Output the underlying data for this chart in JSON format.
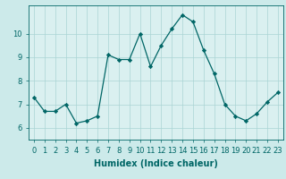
{
  "x": [
    0,
    1,
    2,
    3,
    4,
    5,
    6,
    7,
    8,
    9,
    10,
    11,
    12,
    13,
    14,
    15,
    16,
    17,
    18,
    19,
    20,
    21,
    22,
    23
  ],
  "y": [
    7.3,
    6.7,
    6.7,
    7.0,
    6.2,
    6.3,
    6.5,
    9.1,
    8.9,
    8.9,
    10.0,
    8.6,
    9.5,
    10.2,
    10.8,
    10.5,
    9.3,
    8.3,
    7.0,
    6.5,
    6.3,
    6.6,
    7.1,
    7.5
  ],
  "xlabel": "Humidex (Indice chaleur)",
  "ylim": [
    5.5,
    11.2
  ],
  "xlim": [
    -0.5,
    23.5
  ],
  "line_color": "#006666",
  "marker": "D",
  "marker_size": 2.2,
  "bg_color": "#cceaea",
  "grid_color": "#aad4d4",
  "axis_bg": "#daf0f0",
  "xtick_labels": [
    "0",
    "1",
    "2",
    "3",
    "4",
    "5",
    "6",
    "7",
    "8",
    "9",
    "10",
    "11",
    "12",
    "13",
    "14",
    "15",
    "16",
    "17",
    "18",
    "19",
    "20",
    "21",
    "22",
    "23"
  ],
  "ytick_vals": [
    6,
    7,
    8,
    9,
    10
  ],
  "xlabel_fontsize": 7.0,
  "tick_fontsize": 6.0,
  "linewidth": 0.9
}
